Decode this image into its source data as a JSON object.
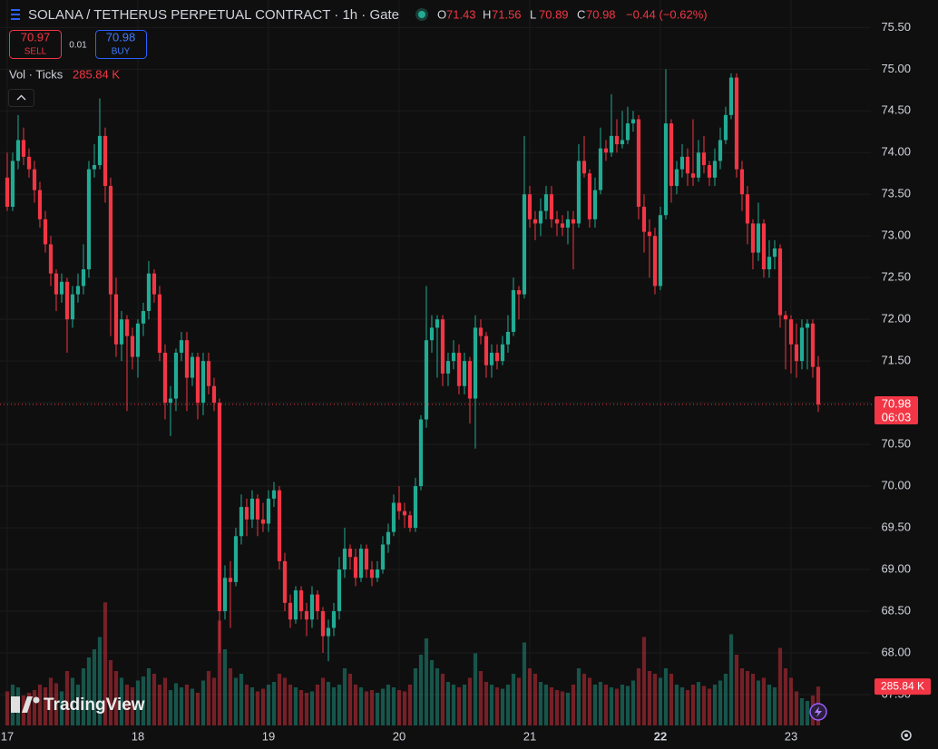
{
  "chart_data": {
    "type": "candlestick",
    "title": "SOLANA / TETHERUS PERPETUAL CONTRACT · 1h · Gate",
    "ohlc_labels": [
      "O",
      "H",
      "L",
      "C"
    ],
    "change": "−0.44 (−0.62%)",
    "sell_price": "70.97",
    "sell_label": "SELL",
    "spread": "0.01",
    "buy_price": "70.98",
    "buy_label": "BUY",
    "volume_title": "Vol · Ticks",
    "last_volume_label": "285.84 K",
    "countdown": "06:03",
    "watermark": "TradingView",
    "up_color": "#22ab94",
    "down_color": "#f23645",
    "ylim": [
      67.13,
      75.83
    ],
    "yticks": [
      {
        "value": 67.5,
        "label": "67.50"
      },
      {
        "value": 68,
        "label": "68.00"
      },
      {
        "value": 68.5,
        "label": "68.50"
      },
      {
        "value": 69,
        "label": "69.00"
      },
      {
        "value": 69.5,
        "label": "69.50"
      },
      {
        "value": 70,
        "label": "70.00"
      },
      {
        "value": 70.5,
        "label": "70.50"
      },
      {
        "value": 71,
        "label": "71.00"
      },
      {
        "value": 71.5,
        "label": "71.50"
      },
      {
        "value": 72,
        "label": "72.00"
      },
      {
        "value": 72.5,
        "label": "72.50"
      },
      {
        "value": 73,
        "label": "73.00"
      },
      {
        "value": 73.5,
        "label": "73.50"
      },
      {
        "value": 74,
        "label": "74.00"
      },
      {
        "value": 74.5,
        "label": "74.50"
      },
      {
        "value": 75,
        "label": "75.00"
      },
      {
        "value": 75.5,
        "label": "75.50"
      }
    ],
    "xlim": [
      -1.33,
      158.67
    ],
    "xticks": [
      {
        "value": 0,
        "label": "17"
      },
      {
        "value": 24,
        "label": "18"
      },
      {
        "value": 48,
        "label": "19"
      },
      {
        "value": 72,
        "label": "20"
      },
      {
        "value": 96,
        "label": "21"
      },
      {
        "value": 120,
        "label": "22"
      },
      {
        "value": 144,
        "label": "23"
      }
    ],
    "grid": true,
    "candles": [
      [
        73.7,
        74.0,
        73.3,
        73.35
      ],
      [
        73.35,
        74.0,
        73.3,
        73.9
      ],
      [
        73.9,
        74.45,
        73.8,
        74.15
      ],
      [
        74.15,
        74.3,
        73.85,
        73.95
      ],
      [
        73.95,
        74.05,
        73.7,
        73.8
      ],
      [
        73.8,
        73.9,
        73.4,
        73.55
      ],
      [
        73.55,
        73.65,
        73.1,
        73.2
      ],
      [
        73.2,
        73.3,
        72.8,
        72.9
      ],
      [
        72.9,
        73.0,
        72.4,
        72.55
      ],
      [
        72.55,
        72.6,
        72.1,
        72.3
      ],
      [
        72.3,
        72.55,
        72.2,
        72.45
      ],
      [
        72.45,
        72.5,
        71.6,
        72.0
      ],
      [
        72.0,
        72.4,
        71.9,
        72.3
      ],
      [
        72.3,
        72.55,
        72.2,
        72.4
      ],
      [
        72.4,
        72.9,
        72.3,
        72.6
      ],
      [
        72.6,
        73.9,
        72.5,
        73.8
      ],
      [
        73.8,
        74.1,
        73.7,
        73.85
      ],
      [
        73.85,
        74.65,
        73.8,
        74.2
      ],
      [
        74.2,
        74.3,
        73.4,
        73.6
      ],
      [
        73.6,
        73.7,
        71.8,
        72.3
      ],
      [
        72.3,
        72.5,
        71.55,
        71.7
      ],
      [
        71.7,
        72.1,
        71.5,
        72.0
      ],
      [
        72.0,
        72.05,
        70.9,
        71.8
      ],
      [
        71.8,
        71.9,
        71.4,
        71.55
      ],
      [
        71.55,
        72.0,
        71.3,
        71.95
      ],
      [
        71.95,
        72.2,
        71.8,
        72.1
      ],
      [
        72.1,
        72.7,
        72.0,
        72.55
      ],
      [
        72.55,
        72.6,
        72.2,
        72.3
      ],
      [
        72.3,
        72.4,
        71.5,
        71.6
      ],
      [
        71.6,
        71.7,
        70.8,
        71.0
      ],
      [
        71.0,
        71.2,
        70.6,
        71.05
      ],
      [
        71.05,
        71.65,
        70.9,
        71.6
      ],
      [
        71.6,
        71.85,
        71.5,
        71.75
      ],
      [
        71.75,
        71.85,
        70.9,
        71.3
      ],
      [
        71.3,
        71.6,
        71.2,
        71.55
      ],
      [
        71.55,
        71.6,
        70.8,
        71.0
      ],
      [
        71.0,
        71.6,
        70.85,
        71.5
      ],
      [
        71.5,
        71.6,
        71.1,
        71.2
      ],
      [
        71.2,
        71.3,
        70.9,
        71.0
      ],
      [
        71.0,
        71.05,
        68.0,
        68.5
      ],
      [
        68.5,
        69.05,
        68.4,
        68.9
      ],
      [
        68.9,
        69.1,
        68.3,
        68.85
      ],
      [
        68.85,
        69.5,
        68.8,
        69.4
      ],
      [
        69.4,
        69.9,
        69.3,
        69.75
      ],
      [
        69.75,
        69.85,
        69.4,
        69.6
      ],
      [
        69.6,
        69.95,
        69.5,
        69.85
      ],
      [
        69.85,
        69.9,
        69.4,
        69.6
      ],
      [
        69.6,
        69.8,
        69.45,
        69.55
      ],
      [
        69.55,
        69.95,
        69.45,
        69.85
      ],
      [
        69.85,
        70.05,
        69.75,
        69.95
      ],
      [
        69.95,
        70.0,
        69.0,
        69.1
      ],
      [
        69.1,
        69.2,
        68.5,
        68.6
      ],
      [
        68.6,
        68.7,
        68.3,
        68.4
      ],
      [
        68.4,
        68.8,
        68.35,
        68.75
      ],
      [
        68.75,
        68.8,
        68.4,
        68.5
      ],
      [
        68.5,
        68.6,
        68.2,
        68.4
      ],
      [
        68.4,
        68.8,
        68.3,
        68.7
      ],
      [
        68.7,
        68.75,
        68.4,
        68.5
      ],
      [
        68.5,
        68.55,
        68.0,
        68.2
      ],
      [
        68.2,
        68.4,
        67.9,
        68.3
      ],
      [
        68.3,
        68.6,
        68.2,
        68.5
      ],
      [
        68.5,
        69.15,
        68.4,
        69.0
      ],
      [
        69.0,
        69.5,
        68.9,
        69.25
      ],
      [
        69.25,
        69.3,
        69.0,
        69.15
      ],
      [
        69.15,
        69.25,
        68.8,
        68.9
      ],
      [
        68.9,
        69.3,
        68.85,
        69.25
      ],
      [
        69.25,
        69.3,
        68.9,
        69.0
      ],
      [
        69.0,
        69.1,
        68.8,
        68.9
      ],
      [
        68.9,
        69.1,
        68.85,
        69.0
      ],
      [
        69.0,
        69.4,
        68.95,
        69.3
      ],
      [
        69.3,
        69.55,
        69.2,
        69.45
      ],
      [
        69.45,
        69.9,
        69.4,
        69.8
      ],
      [
        69.8,
        70.0,
        69.6,
        69.7
      ],
      [
        69.7,
        69.8,
        69.5,
        69.65
      ],
      [
        69.65,
        69.7,
        69.45,
        69.5
      ],
      [
        69.5,
        70.1,
        69.45,
        70.0
      ],
      [
        70.0,
        70.85,
        69.95,
        70.8
      ],
      [
        70.8,
        72.4,
        70.7,
        71.75
      ],
      [
        71.75,
        72.05,
        71.6,
        71.9
      ],
      [
        71.9,
        72.05,
        71.3,
        72.0
      ],
      [
        72.0,
        72.05,
        71.2,
        71.35
      ],
      [
        71.35,
        71.6,
        71.2,
        71.5
      ],
      [
        71.5,
        71.75,
        71.4,
        71.6
      ],
      [
        71.6,
        71.7,
        71.1,
        71.2
      ],
      [
        71.2,
        71.6,
        71.1,
        71.5
      ],
      [
        71.5,
        71.55,
        70.75,
        71.05
      ],
      [
        71.05,
        72.05,
        70.45,
        71.9
      ],
      [
        71.9,
        72.0,
        71.7,
        71.8
      ],
      [
        71.8,
        71.85,
        71.3,
        71.45
      ],
      [
        71.45,
        71.7,
        71.3,
        71.6
      ],
      [
        71.6,
        71.7,
        71.4,
        71.5
      ],
      [
        71.5,
        71.8,
        71.45,
        71.7
      ],
      [
        71.7,
        72.05,
        71.6,
        71.85
      ],
      [
        71.85,
        72.5,
        71.8,
        72.35
      ],
      [
        72.35,
        72.4,
        72.0,
        72.3
      ],
      [
        72.3,
        74.2,
        72.25,
        73.5
      ],
      [
        73.5,
        73.6,
        73.1,
        73.2
      ],
      [
        73.2,
        73.3,
        72.95,
        73.15
      ],
      [
        73.15,
        73.45,
        73.0,
        73.3
      ],
      [
        73.3,
        73.6,
        73.2,
        73.5
      ],
      [
        73.5,
        73.6,
        73.1,
        73.2
      ],
      [
        73.2,
        73.3,
        73.0,
        73.15
      ],
      [
        73.15,
        73.25,
        73.0,
        73.1
      ],
      [
        73.1,
        73.3,
        72.9,
        73.2
      ],
      [
        73.2,
        73.3,
        72.6,
        73.15
      ],
      [
        73.15,
        74.1,
        73.1,
        73.9
      ],
      [
        73.9,
        74.2,
        73.7,
        73.75
      ],
      [
        73.75,
        73.8,
        73.1,
        73.2
      ],
      [
        73.2,
        73.7,
        73.1,
        73.55
      ],
      [
        73.55,
        74.3,
        73.5,
        74.05
      ],
      [
        74.05,
        74.15,
        73.9,
        74.0
      ],
      [
        74.0,
        74.7,
        73.95,
        74.2
      ],
      [
        74.2,
        74.4,
        74.0,
        74.1
      ],
      [
        74.1,
        74.5,
        74.05,
        74.15
      ],
      [
        74.15,
        74.55,
        74.1,
        74.35
      ],
      [
        74.35,
        74.5,
        74.25,
        74.4
      ],
      [
        74.4,
        74.45,
        73.2,
        73.35
      ],
      [
        73.35,
        73.5,
        72.8,
        73.05
      ],
      [
        73.05,
        73.2,
        72.5,
        73.0
      ],
      [
        73.0,
        73.1,
        72.3,
        72.4
      ],
      [
        72.4,
        73.35,
        72.35,
        73.25
      ],
      [
        73.25,
        75.0,
        73.2,
        74.35
      ],
      [
        74.35,
        74.4,
        73.4,
        73.6
      ],
      [
        73.6,
        73.9,
        73.5,
        73.8
      ],
      [
        73.8,
        74.1,
        73.7,
        73.95
      ],
      [
        73.95,
        74.05,
        73.6,
        73.75
      ],
      [
        73.75,
        74.4,
        73.6,
        73.7
      ],
      [
        73.7,
        74.15,
        73.65,
        74.0
      ],
      [
        74.0,
        74.2,
        73.75,
        73.85
      ],
      [
        73.85,
        73.9,
        73.6,
        73.7
      ],
      [
        73.7,
        74.05,
        73.6,
        73.9
      ],
      [
        73.9,
        74.3,
        73.8,
        74.15
      ],
      [
        74.15,
        74.55,
        74.1,
        74.45
      ],
      [
        74.45,
        74.95,
        74.4,
        74.9
      ],
      [
        74.9,
        74.95,
        73.7,
        73.8
      ],
      [
        73.8,
        73.9,
        73.3,
        73.5
      ],
      [
        73.5,
        73.6,
        72.9,
        73.15
      ],
      [
        73.15,
        73.2,
        72.6,
        72.8
      ],
      [
        72.8,
        73.4,
        72.7,
        73.15
      ],
      [
        73.15,
        73.2,
        72.5,
        72.6
      ],
      [
        72.6,
        72.95,
        72.5,
        72.75
      ],
      [
        72.75,
        72.95,
        72.6,
        72.85
      ],
      [
        72.85,
        72.9,
        71.9,
        72.05
      ],
      [
        72.05,
        72.1,
        71.4,
        72.0
      ],
      [
        72.0,
        72.05,
        71.35,
        71.7
      ],
      [
        71.7,
        71.95,
        71.3,
        71.5
      ],
      [
        71.5,
        72.0,
        71.4,
        71.9
      ],
      [
        71.9,
        72.0,
        71.4,
        71.95
      ],
      [
        71.95,
        72.0,
        71.3,
        71.43
      ],
      [
        71.43,
        71.56,
        70.89,
        70.98
      ]
    ],
    "volumes": [
      250,
      300,
      280,
      220,
      240,
      260,
      300,
      280,
      350,
      310,
      250,
      400,
      350,
      300,
      420,
      500,
      560,
      650,
      905,
      480,
      400,
      350,
      300,
      280,
      330,
      360,
      420,
      380,
      300,
      350,
      260,
      310,
      280,
      300,
      270,
      240,
      330,
      400,
      350,
      770,
      560,
      420,
      350,
      380,
      300,
      280,
      250,
      270,
      300,
      320,
      380,
      350,
      300,
      280,
      260,
      240,
      250,
      300,
      350,
      320,
      280,
      300,
      420,
      380,
      300,
      280,
      250,
      260,
      240,
      270,
      300,
      280,
      260,
      250,
      300,
      420,
      520,
      640,
      480,
      420,
      380,
      320,
      300,
      280,
      300,
      350,
      530,
      400,
      320,
      300,
      280,
      270,
      300,
      380,
      350,
      610,
      420,
      380,
      320,
      300,
      280,
      260,
      250,
      240,
      300,
      420,
      380,
      350,
      300,
      320,
      300,
      280,
      270,
      300,
      290,
      330,
      420,
      650,
      400,
      380,
      350,
      420,
      380,
      300,
      280,
      260,
      300,
      320,
      290,
      270,
      300,
      330,
      380,
      670,
      520,
      420,
      400,
      380,
      330,
      350,
      300,
      280,
      570,
      420,
      350,
      250,
      200,
      180,
      220,
      285.84
    ]
  }
}
